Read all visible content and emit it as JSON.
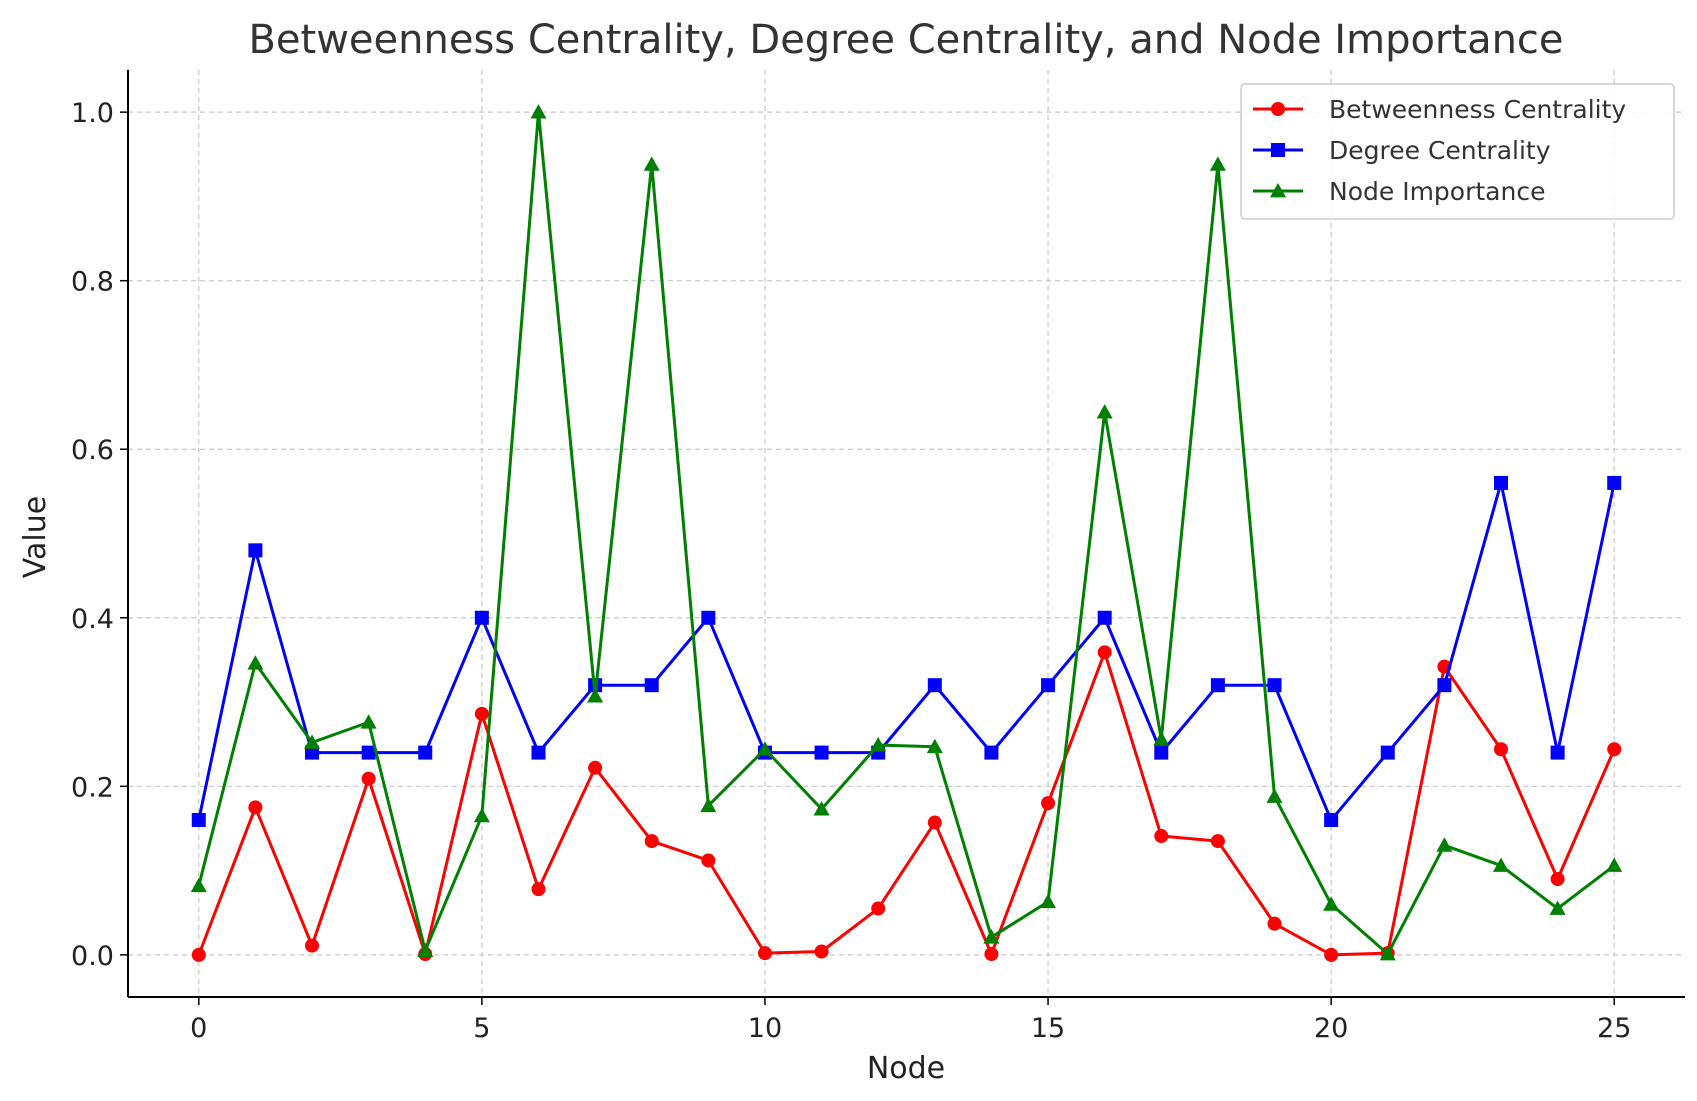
{
  "chart_data": {
    "type": "line",
    "title": "Betweenness Centrality, Degree Centrality, and Node Importance",
    "xlabel": "Node",
    "ylabel": "Value",
    "xlim": [
      -1.25,
      26.25
    ],
    "ylim": [
      -0.05,
      1.05
    ],
    "xticks": [
      0,
      5,
      10,
      15,
      20,
      25
    ],
    "yticks": [
      0.0,
      0.2,
      0.4,
      0.6,
      0.8,
      1.0
    ],
    "xtick_labels": [
      "0",
      "5",
      "10",
      "15",
      "20",
      "25"
    ],
    "ytick_labels": [
      "0.0",
      "0.2",
      "0.4",
      "0.6",
      "0.8",
      "1.0"
    ],
    "grid": true,
    "legend_position": "top-right",
    "x": [
      0,
      1,
      2,
      3,
      4,
      5,
      6,
      7,
      8,
      9,
      10,
      11,
      12,
      13,
      14,
      15,
      16,
      17,
      18,
      19,
      20,
      21,
      22,
      23,
      24,
      25
    ],
    "series": [
      {
        "name": "Betweenness Centrality",
        "color": "#ff0000",
        "marker": "circle",
        "values": [
          0.0,
          0.175,
          0.011,
          0.209,
          0.001,
          0.286,
          0.078,
          0.222,
          0.135,
          0.112,
          0.002,
          0.004,
          0.055,
          0.157,
          0.001,
          0.18,
          0.359,
          0.141,
          0.135,
          0.037,
          0.0,
          0.002,
          0.342,
          0.244,
          0.09,
          0.244
        ]
      },
      {
        "name": "Degree Centrality",
        "color": "#0000ff",
        "marker": "square",
        "values": [
          0.16,
          0.48,
          0.24,
          0.24,
          0.24,
          0.4,
          0.24,
          0.32,
          0.32,
          0.4,
          0.24,
          0.24,
          0.24,
          0.32,
          0.24,
          0.32,
          0.4,
          0.24,
          0.32,
          0.32,
          0.16,
          0.24,
          0.32,
          0.56,
          0.24,
          0.56
        ]
      },
      {
        "name": "Node Importance",
        "color": "#008000",
        "marker": "triangle",
        "values": [
          0.082,
          0.346,
          0.252,
          0.276,
          0.005,
          0.165,
          1.0,
          0.307,
          0.938,
          0.177,
          0.244,
          0.173,
          0.249,
          0.247,
          0.021,
          0.063,
          0.644,
          0.256,
          0.938,
          0.188,
          0.06,
          0.001,
          0.13,
          0.106,
          0.055,
          0.106
        ]
      }
    ]
  }
}
